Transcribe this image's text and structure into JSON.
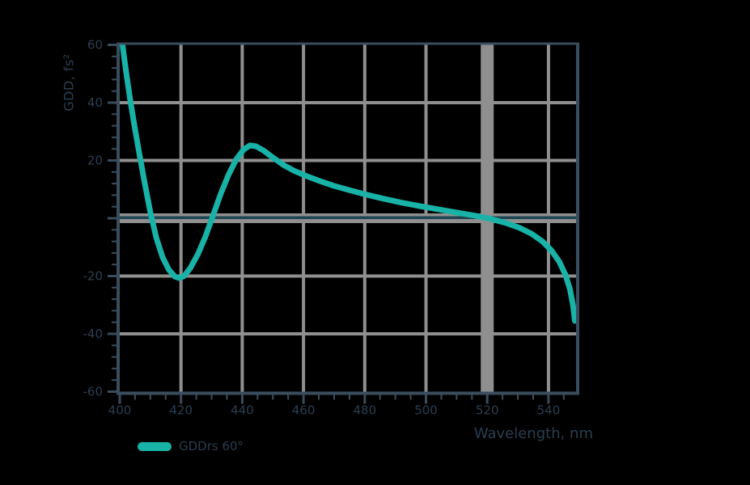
{
  "colors": {
    "background": "#000000",
    "curve": "#19b2a7",
    "grid": "#8f8f8f",
    "axis": "#3a4d5c",
    "text": "#2b3e50",
    "zero_line_dark": "#1c4452"
  },
  "legend": {
    "label": "GDDrs 60°",
    "swatch_color": "#19b2a7"
  },
  "titles": {
    "y_axis": "GDD, fs²",
    "x_axis": "Wavelength, nm"
  },
  "chart_data": {
    "type": "line",
    "title": "",
    "xlabel": "Wavelength, nm",
    "ylabel": "GDD, fs²",
    "xlim": [
      400,
      549
    ],
    "ylim": [
      -60,
      60
    ],
    "grid": true,
    "legend_position": "bottom-left",
    "x_major_ticks": [
      400,
      420,
      440,
      460,
      480,
      500,
      520,
      540
    ],
    "x_tick_labels": [
      "400",
      "420",
      "440",
      "460",
      "480",
      "500",
      "520",
      "540"
    ],
    "x_minor_step": 5,
    "y_major_ticks": [
      60,
      40,
      20,
      0,
      -20,
      -40,
      -60
    ],
    "y_tick_labels": [
      "60",
      "40",
      "20",
      "",
      "-20",
      "-40",
      "-60"
    ],
    "y_minor_step": 4,
    "highlight_x_gridline": 520,
    "zero_line_y": 0,
    "series": [
      {
        "name": "GDDrs 60°",
        "color": "#19b2a7",
        "points": [
          [
            400.8,
            61
          ],
          [
            401.4,
            56
          ],
          [
            402.3,
            49
          ],
          [
            403.4,
            41
          ],
          [
            404.8,
            32
          ],
          [
            406.3,
            23
          ],
          [
            408,
            13
          ],
          [
            410,
            2
          ],
          [
            412,
            -7
          ],
          [
            414,
            -13.5
          ],
          [
            416,
            -17.8
          ],
          [
            418,
            -20.2
          ],
          [
            419.5,
            -20.7
          ],
          [
            421,
            -20
          ],
          [
            423,
            -17.3
          ],
          [
            425.5,
            -12.5
          ],
          [
            428,
            -6.3
          ],
          [
            430.5,
            1
          ],
          [
            433,
            8.5
          ],
          [
            435.5,
            15
          ],
          [
            438,
            20.3
          ],
          [
            440.5,
            23.8
          ],
          [
            442.5,
            25.2
          ],
          [
            444.5,
            24.9
          ],
          [
            447,
            23.4
          ],
          [
            450,
            21
          ],
          [
            453.5,
            18.4
          ],
          [
            457,
            16.4
          ],
          [
            461,
            14.6
          ],
          [
            465.5,
            12.8
          ],
          [
            470,
            11.2
          ],
          [
            475,
            9.7
          ],
          [
            480,
            8.3
          ],
          [
            486,
            6.8
          ],
          [
            492,
            5.4
          ],
          [
            498,
            4.2
          ],
          [
            504,
            3.1
          ],
          [
            510,
            2
          ],
          [
            516,
            0.9
          ],
          [
            521,
            -0.2
          ],
          [
            526,
            -1.6
          ],
          [
            530.5,
            -3.3
          ],
          [
            534.5,
            -5.4
          ],
          [
            538,
            -8
          ],
          [
            541,
            -11.2
          ],
          [
            543.5,
            -15
          ],
          [
            545.5,
            -19.5
          ],
          [
            547,
            -24.5
          ],
          [
            548,
            -30
          ],
          [
            548.6,
            -35.5
          ]
        ]
      }
    ]
  }
}
